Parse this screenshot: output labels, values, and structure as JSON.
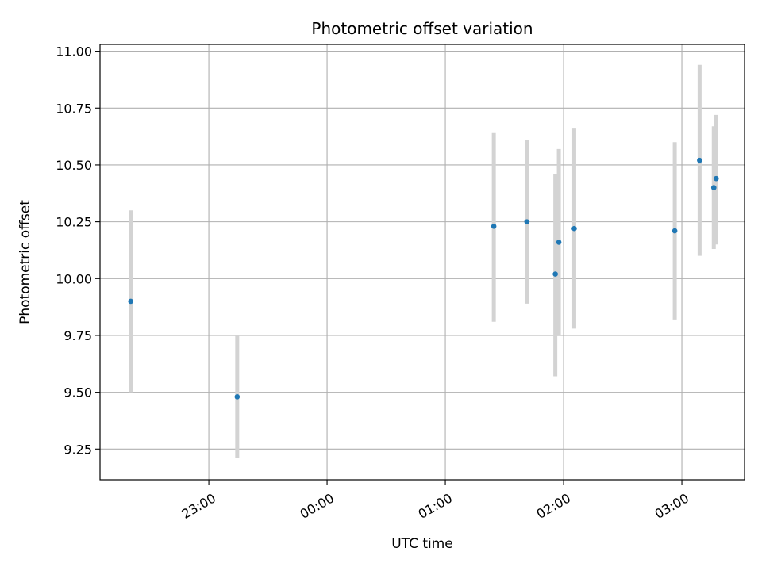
{
  "chart_data": {
    "type": "scatter",
    "title": "Photometric offset variation",
    "xlabel": "UTC time",
    "ylabel": "Photometric offset",
    "grid": true,
    "xlim_hours": [
      22.08,
      27.53
    ],
    "ylim": [
      9.115,
      11.03
    ],
    "x_ticks": [
      {
        "hour": 23,
        "label": "23:00"
      },
      {
        "hour": 24,
        "label": "00:00"
      },
      {
        "hour": 25,
        "label": "01:00"
      },
      {
        "hour": 26,
        "label": "02:00"
      },
      {
        "hour": 27,
        "label": "03:00"
      }
    ],
    "y_ticks": [
      {
        "value": 9.25,
        "label": "9.25"
      },
      {
        "value": 9.5,
        "label": "9.50"
      },
      {
        "value": 9.75,
        "label": "9.75"
      },
      {
        "value": 10.0,
        "label": "10.00"
      },
      {
        "value": 10.25,
        "label": "10.25"
      },
      {
        "value": 10.5,
        "label": "10.50"
      },
      {
        "value": 10.75,
        "label": "10.75"
      },
      {
        "value": 11.0,
        "label": "11.00"
      }
    ],
    "points": [
      {
        "time": "22:20",
        "hour": 22.34,
        "value": 9.9,
        "err_low": 9.5,
        "err_high": 10.3
      },
      {
        "time": "23:14",
        "hour": 23.24,
        "value": 9.48,
        "err_low": 9.21,
        "err_high": 9.75
      },
      {
        "time": "01:25",
        "hour": 25.41,
        "value": 10.23,
        "err_low": 9.81,
        "err_high": 10.64
      },
      {
        "time": "01:41",
        "hour": 25.69,
        "value": 10.25,
        "err_low": 9.89,
        "err_high": 10.61
      },
      {
        "time": "01:56",
        "hour": 25.93,
        "value": 10.02,
        "err_low": 9.57,
        "err_high": 10.46
      },
      {
        "time": "01:57",
        "hour": 25.96,
        "value": 10.16,
        "err_low": 9.75,
        "err_high": 10.57
      },
      {
        "time": "02:05",
        "hour": 26.09,
        "value": 10.22,
        "err_low": 9.78,
        "err_high": 10.66
      },
      {
        "time": "02:56",
        "hour": 26.94,
        "value": 10.21,
        "err_low": 9.82,
        "err_high": 10.6
      },
      {
        "time": "03:09",
        "hour": 27.15,
        "value": 10.52,
        "err_low": 10.1,
        "err_high": 10.94
      },
      {
        "time": "03:16",
        "hour": 27.27,
        "value": 10.4,
        "err_low": 10.13,
        "err_high": 10.67
      },
      {
        "time": "03:17",
        "hour": 27.29,
        "value": 10.44,
        "err_low": 10.15,
        "err_high": 10.72
      }
    ],
    "colors": {
      "marker": "#1f77b4",
      "errorbar": "#d3d3d3",
      "grid": "#b0b0b0",
      "axes": "#000000"
    }
  }
}
